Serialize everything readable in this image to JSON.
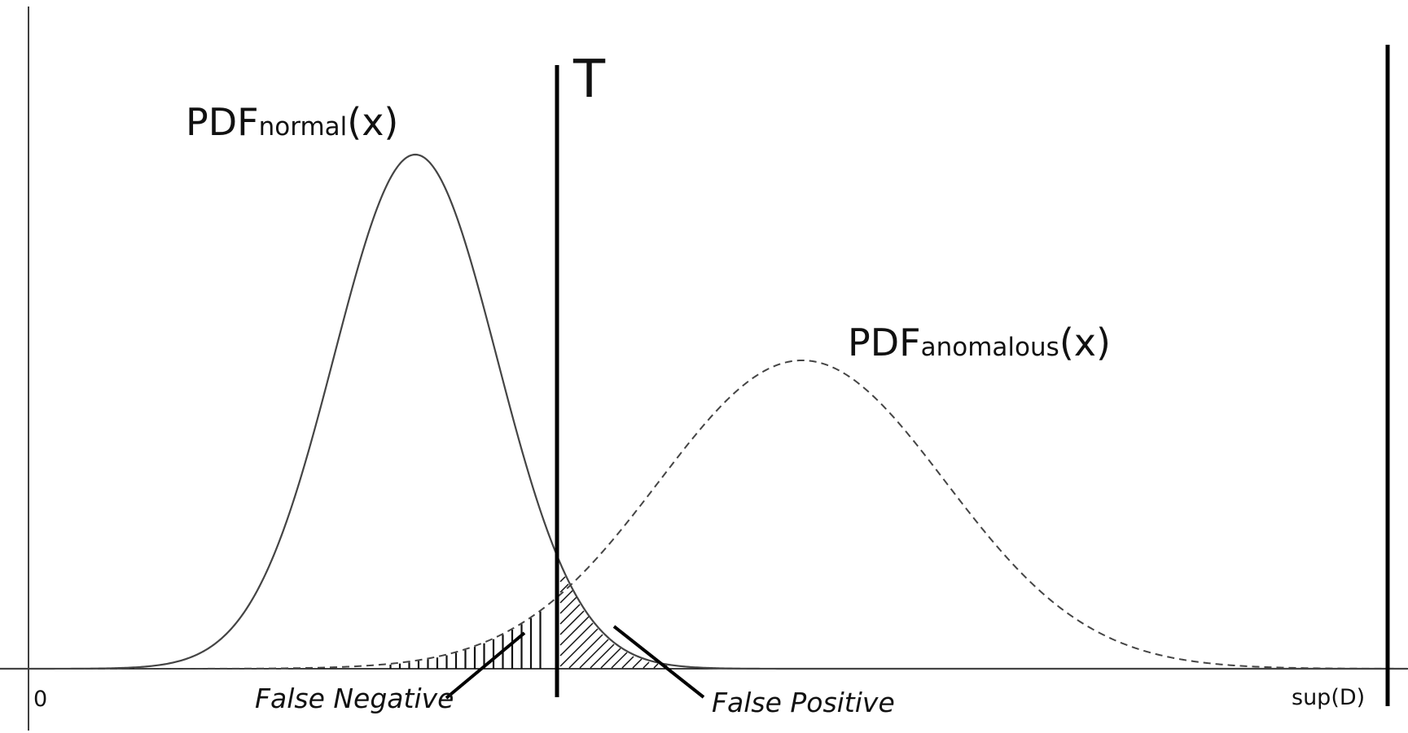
{
  "labels": {
    "threshold": "T",
    "normal_main": "PDF",
    "normal_sub": "normal",
    "normal_suffix": "(x)",
    "anomalous_main": "PDF",
    "anomalous_sub": "anomalous",
    "anomalous_suffix": "(x)",
    "origin": "0",
    "sup": "sup(D)",
    "false_negative": "False Negative",
    "false_positive": "False Positive"
  },
  "colors": {
    "curve": "#444444",
    "lines": "#000000",
    "hatch": "#111111"
  }
}
